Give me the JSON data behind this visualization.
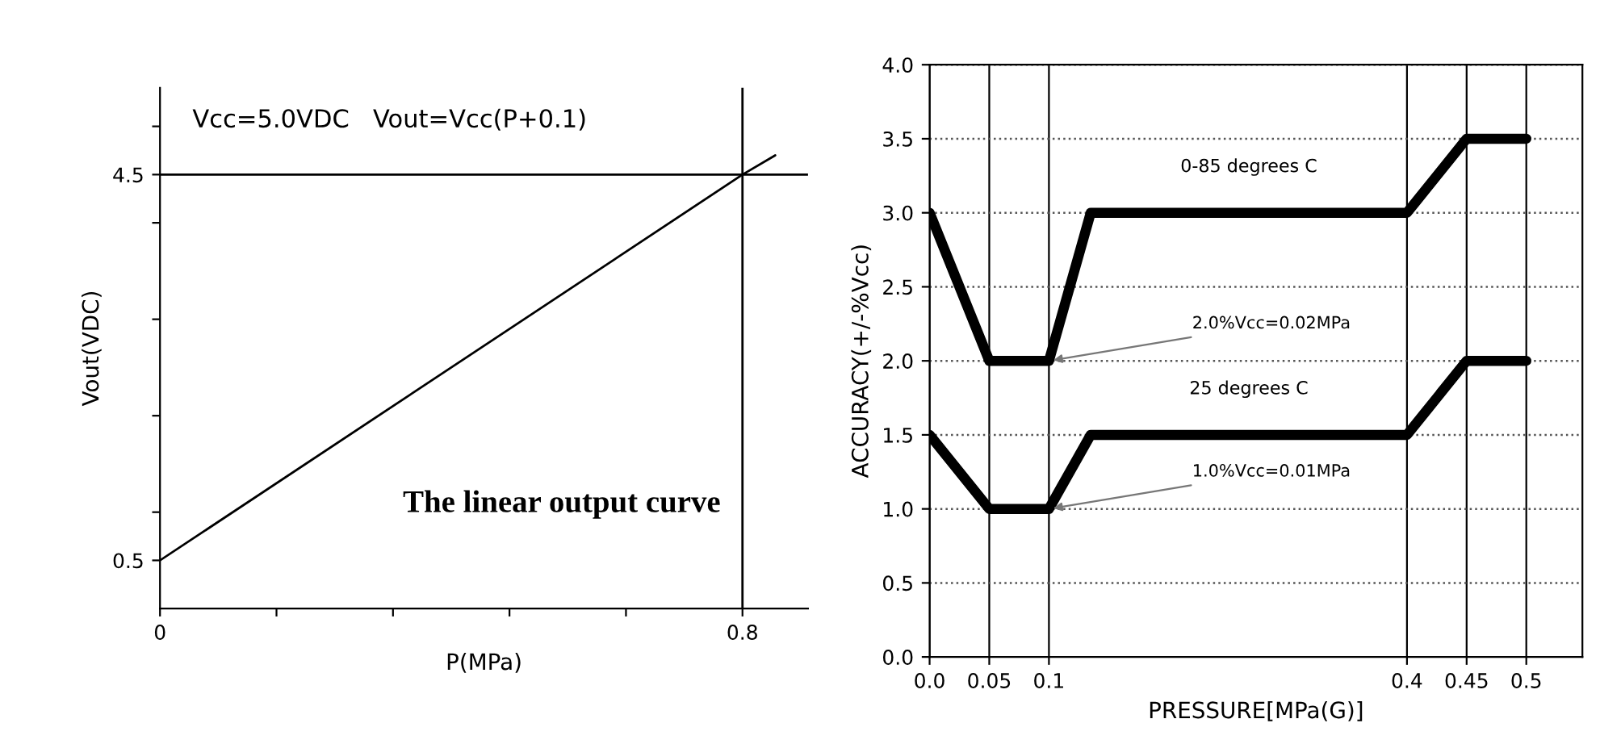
{
  "chart_data": [
    {
      "type": "line",
      "xlabel": "P(MPa)",
      "ylabel": "Vout(VDC)",
      "x": [
        0,
        0.8,
        0.845
      ],
      "series": [
        {
          "color": "#000000",
          "values": [
            0.5,
            4.5,
            4.7
          ]
        }
      ],
      "xlim": [
        0,
        0.89
      ],
      "ylim": [
        0,
        5.4
      ],
      "xticks": [
        0,
        {
          "value": 0.16,
          "label": null
        },
        {
          "value": 0.32,
          "label": null
        },
        {
          "value": 0.48,
          "label": null
        },
        {
          "value": 0.64,
          "label": null
        },
        0.8
      ],
      "yticks": [
        0.5,
        {
          "value": 1,
          "label": null
        },
        {
          "value": 2,
          "label": null
        },
        {
          "value": 3,
          "label": null
        },
        {
          "value": 4,
          "label": null
        },
        4.5,
        {
          "value": 5,
          "label": null
        }
      ],
      "ref_lines": [
        {
          "axis": "y",
          "value": 4.5,
          "color": "#000000"
        },
        {
          "axis": "x",
          "value": 0.8,
          "color": "#000000"
        }
      ],
      "annotations": [
        "Vcc=5.0VDC   Vout=Vcc(P+0.1)",
        "The linear output curve"
      ],
      "grid": false,
      "legend": false,
      "marker": "none",
      "line_style": "solid"
    },
    {
      "type": "line",
      "xlabel": "PRESSURE[MPa(G)]",
      "ylabel": "ACCURACY(+/-%Vcc)",
      "x": [
        0,
        0.05,
        0.1,
        0.135,
        0.4,
        0.45,
        0.5
      ],
      "series": [
        {
          "name": "0-85 degrees C",
          "color": "#000000",
          "values": [
            3.0,
            2.0,
            2.0,
            3.0,
            3.0,
            3.5,
            3.5
          ]
        },
        {
          "name": "25 degrees C",
          "color": "#000000",
          "values": [
            1.5,
            1.0,
            1.0,
            1.5,
            1.5,
            2.0,
            2.0
          ]
        }
      ],
      "xlim": [
        0,
        0.547
      ],
      "ylim": [
        0,
        4
      ],
      "xticks": [
        {
          "value": 0,
          "label": "0.0"
        },
        0.05,
        0.1,
        0.4,
        0.45,
        0.5
      ],
      "yticks": [
        {
          "value": 0,
          "label": "0.0"
        },
        0.5,
        {
          "value": 1,
          "label": "1.0"
        },
        1.5,
        {
          "value": 2,
          "label": "2.0"
        },
        2.5,
        {
          "value": 3,
          "label": "3.0"
        },
        3.5,
        {
          "value": 4,
          "label": "4.0"
        }
      ],
      "annotations": [
        {
          "text": "2.0%Vcc=0.02MPa",
          "x": 0.1,
          "y": 2.0
        },
        {
          "text": "1.0%Vcc=0.01MPa",
          "x": 0.1,
          "y": 1.0
        }
      ],
      "grid": true,
      "legend": false,
      "marker": "none",
      "line_style": "solid"
    }
  ]
}
